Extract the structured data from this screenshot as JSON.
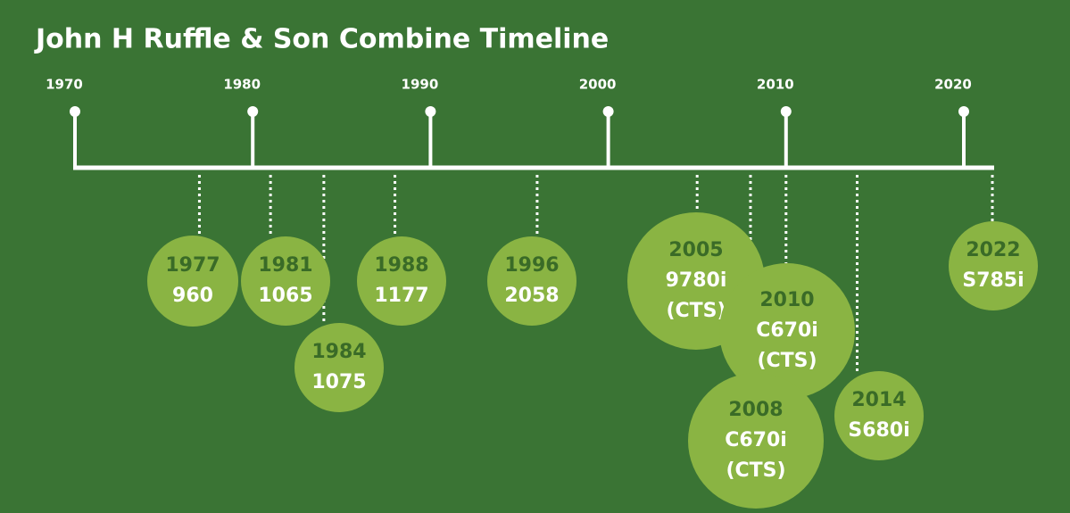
{
  "title": "John H Ruffle & Son Combine Timeline",
  "decades": [
    1970,
    1980,
    1990,
    2000,
    2010,
    2020
  ],
  "events": [
    {
      "year": 1977,
      "model": [
        "960"
      ]
    },
    {
      "year": 1981,
      "model": [
        "1065"
      ]
    },
    {
      "year": 1984,
      "model": [
        "1075"
      ]
    },
    {
      "year": 1988,
      "model": [
        "1177"
      ]
    },
    {
      "year": 1996,
      "model": [
        "2058"
      ]
    },
    {
      "year": 2005,
      "model": [
        "9780i",
        "(CTS)"
      ]
    },
    {
      "year": 2010,
      "model": [
        "C670i",
        "(CTS)"
      ]
    },
    {
      "year": 2008,
      "model": [
        "C670i",
        "(CTS)"
      ]
    },
    {
      "year": 2014,
      "model": [
        "S680i"
      ]
    },
    {
      "year": 2022,
      "model": [
        "S785i"
      ]
    }
  ]
}
